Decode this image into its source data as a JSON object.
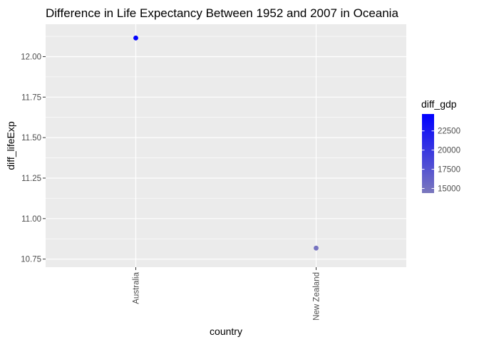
{
  "chart_data": {
    "type": "scatter",
    "title": "Difference in Life Expectancy Between 1952 and 2007 in Oceania",
    "xlabel": "country",
    "ylabel": "diff_lifeExp",
    "categories": [
      "Australia",
      "New Zealand"
    ],
    "points": [
      {
        "x": "Australia",
        "y": 12.115,
        "color_value": 24500
      },
      {
        "x": "New Zealand",
        "y": 10.818,
        "color_value": 14800
      }
    ],
    "ylim": [
      10.7,
      12.2
    ],
    "y_ticks": [
      10.75,
      11.0,
      11.25,
      11.5,
      11.75,
      12.0
    ],
    "y_tick_labels": [
      "10.75",
      "11.00",
      "11.25",
      "11.50",
      "11.75",
      "12.00"
    ],
    "legend": {
      "title": "diff_gdp",
      "range": [
        14400,
        24700
      ],
      "breaks": [
        15000,
        17500,
        20000,
        22500
      ],
      "labels": [
        "15000",
        "17500",
        "20000",
        "22500"
      ],
      "color_low": "#7b78bd",
      "color_high": "#0000ff",
      "placement": "right"
    },
    "panel_background": "#ebebeb",
    "grid_color": "#ffffff",
    "grid": true
  }
}
